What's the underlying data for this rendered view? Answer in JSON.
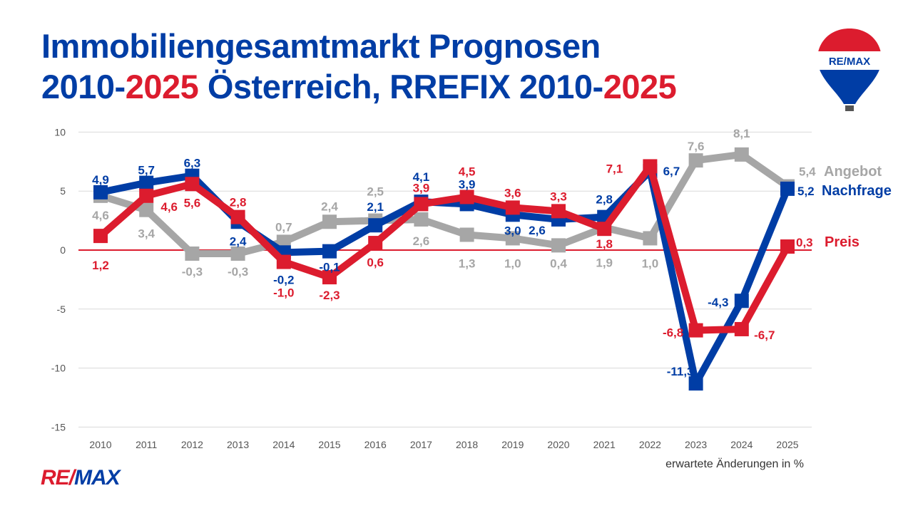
{
  "title": {
    "line1": "Immobiliengesamtmarkt Prognosen",
    "line2_a": "2010-",
    "line2_b": "2025",
    "line2_c": " Österreich, RREFIX 2010-",
    "line2_d": "2025"
  },
  "logo": {
    "text_re": "RE/",
    "text_max": "MAX",
    "balloon_text": "RE/MAX"
  },
  "colors": {
    "Nachfrage": "#003da5",
    "Preis": "#dc1c2e",
    "Angebot": "#a6a6a6"
  },
  "chart_data": {
    "type": "line",
    "categories": [
      "2010",
      "2011",
      "2012",
      "2013",
      "2014",
      "2015",
      "2016",
      "2017",
      "2018",
      "2019",
      "2020",
      "2021",
      "2022",
      "2023",
      "2024",
      "2025"
    ],
    "ylim": [
      -15,
      10
    ],
    "yticks": [
      10,
      5,
      0,
      -5,
      -10,
      -15
    ],
    "xlabel": "erwartete Änderungen in %",
    "grid": true,
    "series": [
      {
        "name": "Angebot",
        "values": [
          4.6,
          3.4,
          -0.3,
          -0.3,
          0.7,
          2.4,
          2.5,
          2.6,
          1.3,
          1.0,
          0.4,
          1.9,
          1.0,
          7.6,
          8.1,
          5.4
        ]
      },
      {
        "name": "Nachfrage",
        "values": [
          4.9,
          5.7,
          6.3,
          2.4,
          -0.2,
          -0.1,
          2.1,
          4.1,
          3.9,
          3.0,
          2.6,
          2.8,
          6.7,
          -11.3,
          -4.3,
          5.2
        ]
      },
      {
        "name": "Preis",
        "values": [
          1.2,
          4.6,
          5.6,
          2.8,
          -1.0,
          -2.3,
          0.6,
          3.9,
          4.5,
          3.6,
          3.3,
          1.8,
          7.1,
          -6.8,
          -6.7,
          0.3
        ]
      }
    ]
  }
}
